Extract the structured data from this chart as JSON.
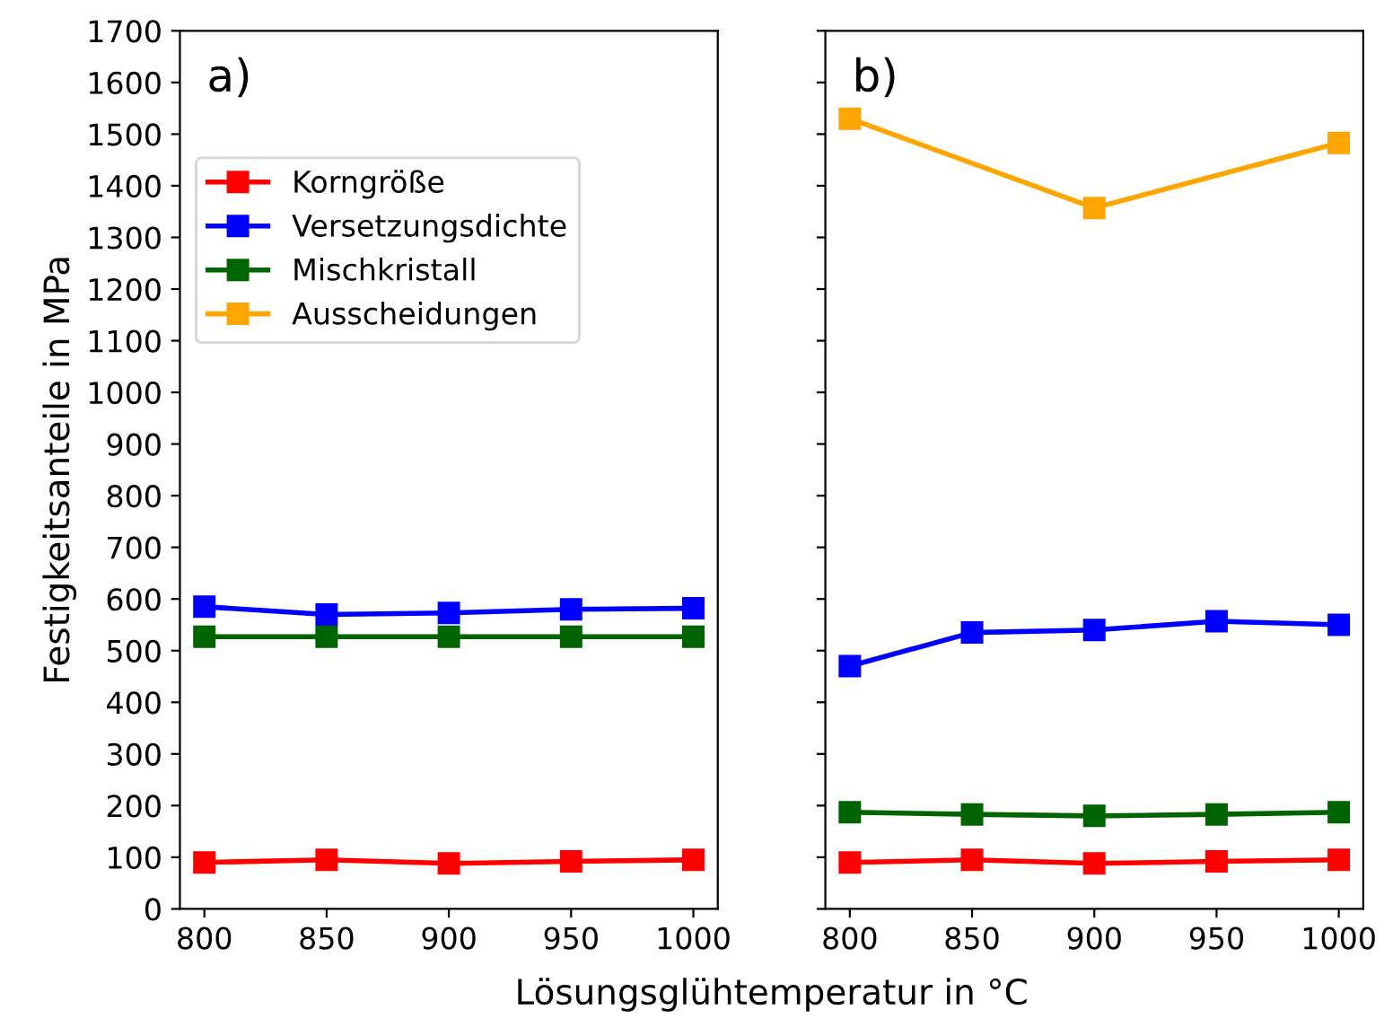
{
  "chart_data": [
    {
      "type": "line",
      "ylabel": "Festigkeitsanteile in MPa",
      "xlabel": "Lösungsglühtemperatur in °C",
      "annotations": [
        "a)"
      ],
      "x": [
        800,
        850,
        900,
        950,
        1000
      ],
      "xlim": [
        790,
        1010
      ],
      "xticks": [
        800,
        850,
        900,
        950,
        1000
      ],
      "ylim": [
        0,
        1700
      ],
      "yticks": [
        0,
        100,
        200,
        300,
        400,
        500,
        600,
        700,
        800,
        900,
        1000,
        1100,
        1200,
        1300,
        1400,
        1500,
        1600,
        1700
      ],
      "marker": "square",
      "legend": "top left",
      "grid": false,
      "series": [
        {
          "name": "Korngröße",
          "color": "#ff0000",
          "values": [
            90,
            95,
            88,
            92,
            95
          ]
        },
        {
          "name": "Versetzungsdichte",
          "color": "#0000ff",
          "values": [
            585,
            570,
            573,
            580,
            582
          ]
        },
        {
          "name": "Mischkristall",
          "color": "#006400",
          "values": [
            527,
            527,
            527,
            527,
            527
          ]
        },
        {
          "name": "Ausscheidungen",
          "color": "#ffa500",
          "values": [
            null,
            null,
            null,
            null,
            null
          ]
        }
      ]
    },
    {
      "type": "line",
      "annotations": [
        "b)"
      ],
      "x": [
        800,
        850,
        900,
        950,
        1000
      ],
      "xlim": [
        790,
        1010
      ],
      "xticks": [
        800,
        850,
        900,
        950,
        1000
      ],
      "ylim": [
        0,
        1700
      ],
      "yticks": [
        0,
        100,
        200,
        300,
        400,
        500,
        600,
        700,
        800,
        900,
        1000,
        1100,
        1200,
        1300,
        1400,
        1500,
        1600,
        1700
      ],
      "tick_labels": "x",
      "marker": "square",
      "grid": false,
      "series": [
        {
          "color": "#ff0000",
          "values": [
            90,
            95,
            88,
            92,
            95
          ]
        },
        {
          "color": "#0000ff",
          "values": [
            470,
            535,
            540,
            557,
            550
          ]
        },
        {
          "color": "#006400",
          "values": [
            187,
            183,
            180,
            183,
            187
          ]
        },
        {
          "color": "#ffa500",
          "x": [
            800,
            900,
            1000
          ],
          "values": [
            1530,
            1357,
            1483
          ]
        }
      ]
    }
  ]
}
